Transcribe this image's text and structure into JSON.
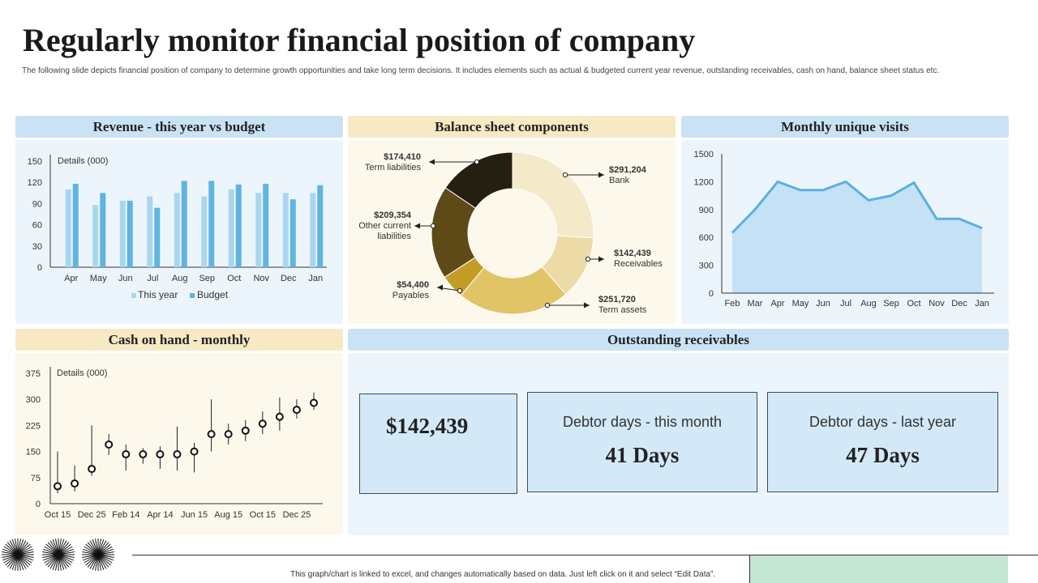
{
  "page": {
    "title": "Regularly monitor financial position of company",
    "subtitle": "The following slide depicts financial position of company to determine growth opportunities and take long term decisions. It includes elements  such as actual & budgeted current year revenue, outstanding receivables, cash on hand, balance sheet status etc.",
    "footer_note": "This graph/chart is linked to excel, and changes automatically based on data. Just left click on it and select “Edit Data”."
  },
  "panels": {
    "revenue": "Revenue - this year vs budget",
    "balance": "Balance sheet components",
    "visits": "Monthly unique visits",
    "cash": "Cash on hand - monthly",
    "receivables": "Outstanding receivables"
  },
  "receivables": {
    "amount": "$142,439",
    "this_month_label": "Debtor days - this month",
    "this_month_value": "41 Days",
    "last_year_label": "Debtor days - last year",
    "last_year_value": "47 Days"
  },
  "colors": {
    "this_year": "#a9d6ef",
    "budget": "#5fb4e0",
    "visits_line": "#5ab0de",
    "visits_fill": "#c4e1f6"
  },
  "chart_data": [
    {
      "id": "revenue",
      "type": "bar",
      "title": "Revenue - this year vs budget",
      "unit_label": "Details (000)",
      "categories": [
        "Apr",
        "May",
        "Jun",
        "Jul",
        "Aug",
        "Sep",
        "Oct",
        "Nov",
        "Dec",
        "Jan"
      ],
      "series": [
        {
          "name": "This year",
          "values": [
            110,
            88,
            94,
            100,
            105,
            100,
            110,
            105,
            105,
            105
          ]
        },
        {
          "name": "Budget",
          "values": [
            118,
            105,
            94,
            84,
            122,
            122,
            117,
            118,
            96,
            116
          ]
        }
      ],
      "ylim": [
        0,
        150
      ],
      "yticks": [
        0,
        30,
        60,
        90,
        120,
        150
      ],
      "legend": "bottom"
    },
    {
      "id": "balance",
      "type": "pie",
      "title": "Balance sheet components",
      "slices": [
        {
          "label": "Bank",
          "value_label": "$291,204",
          "value": 291204,
          "color": "#f4e9c9"
        },
        {
          "label": "Receivables",
          "value_label": "$142,439",
          "value": 142439,
          "color": "#ecdba6"
        },
        {
          "label": "Term assets",
          "value_label": "$251,720",
          "value": 251720,
          "color": "#e0c466"
        },
        {
          "label": "Payables",
          "value_label": "$54,400",
          "value": 54400,
          "color": "#c39d26"
        },
        {
          "label": "Other current liabilities",
          "label_lines": [
            "Other current",
            "liabilities"
          ],
          "value_label": "$209,354",
          "value": 209354,
          "color": "#5e4a16"
        },
        {
          "label": "Term liabilities",
          "value_label": "$174,410",
          "value": 174410,
          "color": "#241f10"
        }
      ]
    },
    {
      "id": "visits",
      "type": "area",
      "title": "Monthly unique visits",
      "categories": [
        "Feb",
        "Mar",
        "Apr",
        "May",
        "Jun",
        "Jul",
        "Aug",
        "Sep",
        "Oct",
        "Nov",
        "Dec",
        "Jan"
      ],
      "values": [
        650,
        900,
        1200,
        1110,
        1110,
        1200,
        1000,
        1050,
        1190,
        800,
        800,
        700
      ],
      "ylim": [
        0,
        1500
      ],
      "yticks": [
        0,
        300,
        600,
        900,
        1200,
        1500
      ]
    },
    {
      "id": "cash",
      "type": "scatter",
      "title": "Cash on hand - monthly",
      "unit_label": "Details (000)",
      "x_ticks": [
        "Oct 15",
        "Dec 25",
        "Feb 14",
        "Apr 14",
        "Jun 15",
        "Aug 15",
        "Oct 15",
        "Dec 25"
      ],
      "points": [
        {
          "value": 50,
          "low": 30,
          "high": 150
        },
        {
          "value": 58,
          "low": 35,
          "high": 110
        },
        {
          "value": 100,
          "low": 80,
          "high": 225
        },
        {
          "value": 170,
          "low": 140,
          "high": 200
        },
        {
          "value": 142,
          "low": 95,
          "high": 170
        },
        {
          "value": 142,
          "low": 115,
          "high": 160
        },
        {
          "value": 142,
          "low": 100,
          "high": 165
        },
        {
          "value": 142,
          "low": 95,
          "high": 222
        },
        {
          "value": 150,
          "low": 90,
          "high": 175
        },
        {
          "value": 200,
          "low": 150,
          "high": 300
        },
        {
          "value": 200,
          "low": 170,
          "high": 230
        },
        {
          "value": 210,
          "low": 180,
          "high": 240
        },
        {
          "value": 230,
          "low": 200,
          "high": 265
        },
        {
          "value": 250,
          "low": 210,
          "high": 305
        },
        {
          "value": 270,
          "low": 245,
          "high": 300
        },
        {
          "value": 290,
          "low": 270,
          "high": 320
        }
      ],
      "ylim": [
        0,
        375
      ],
      "yticks": [
        0,
        75,
        150,
        225,
        300,
        375
      ]
    }
  ]
}
